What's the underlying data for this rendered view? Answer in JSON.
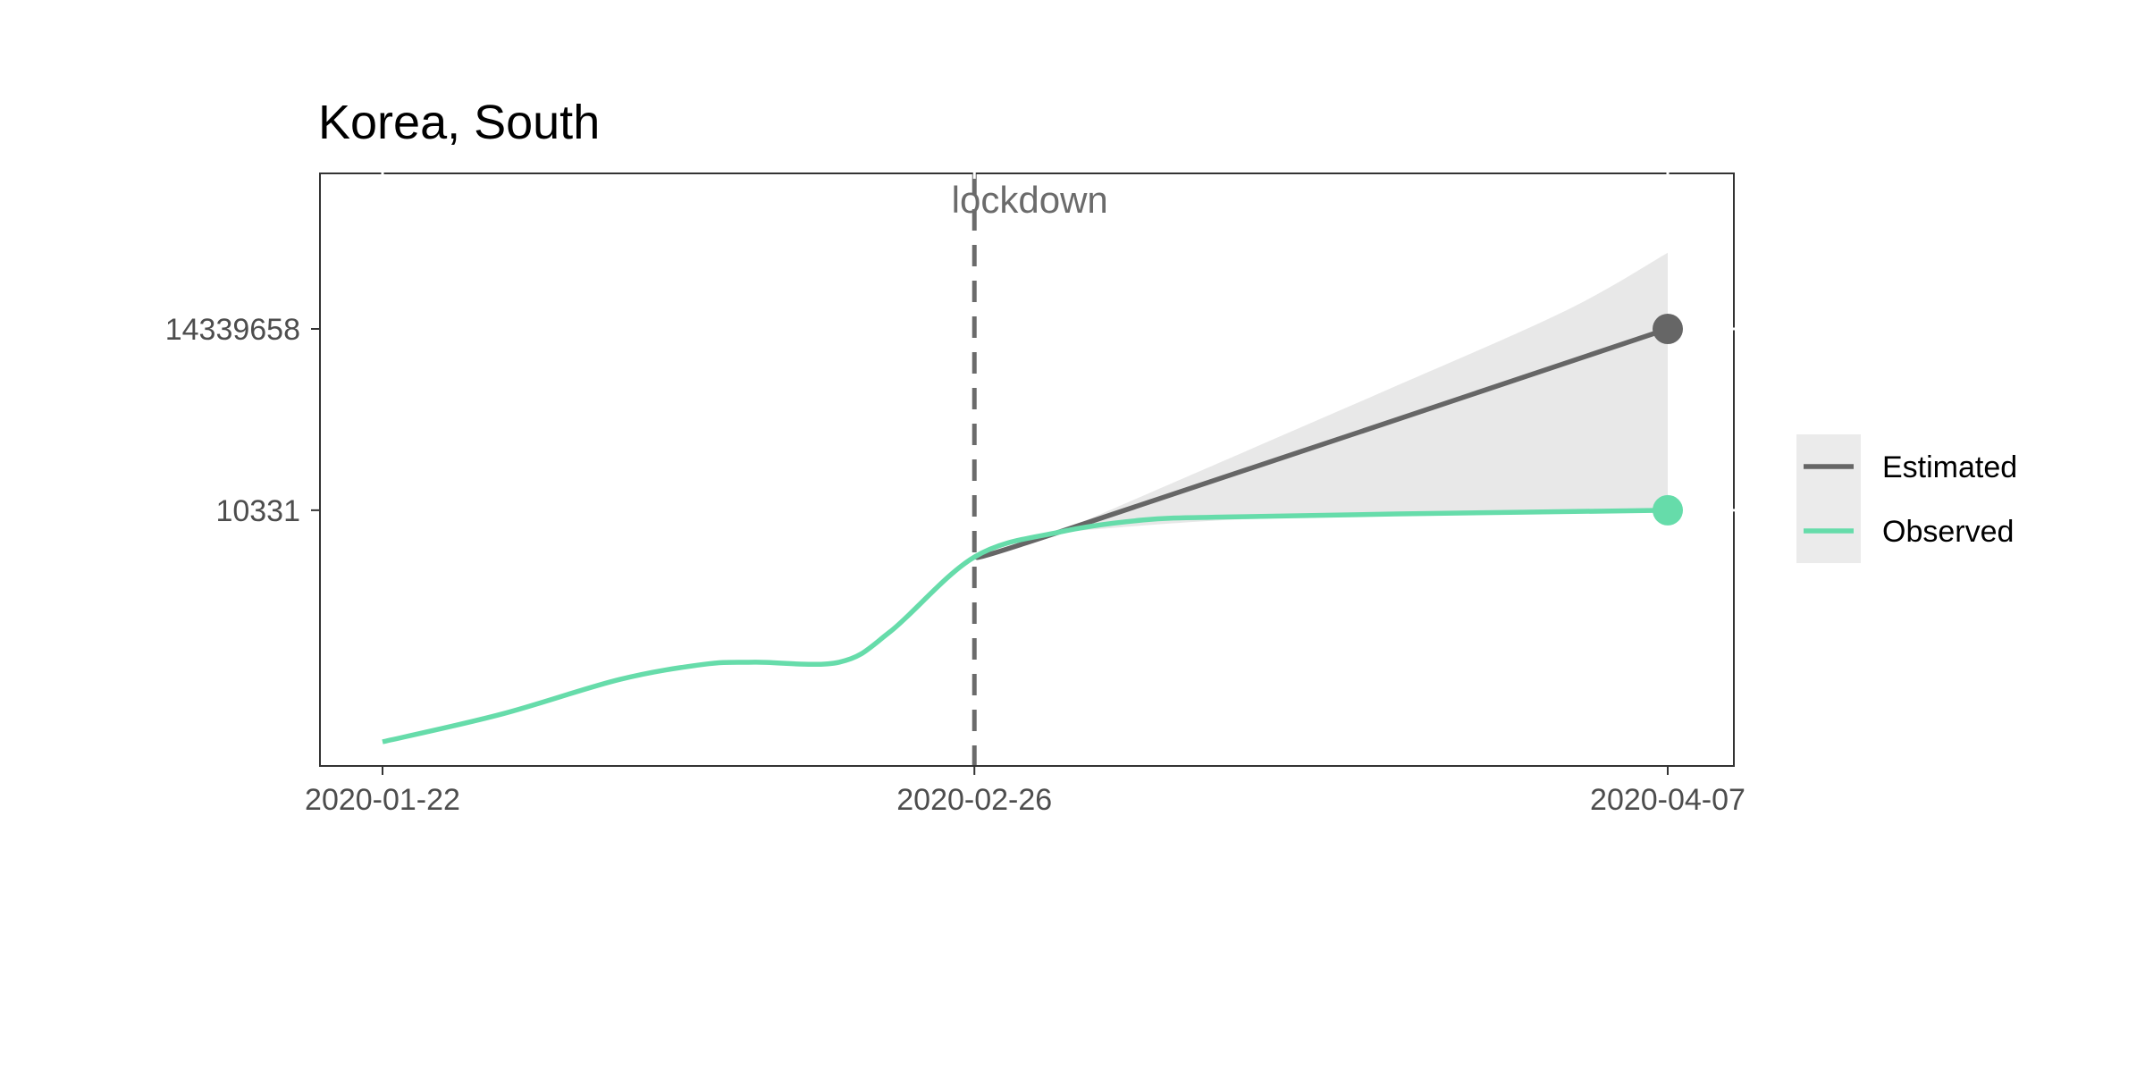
{
  "chart_data": {
    "type": "line",
    "title": "Korea, South",
    "xlabel": "",
    "ylabel": "",
    "x_ticks": [
      "2020-01-22",
      "2020-02-26",
      "2020-04-07"
    ],
    "y_ticks": [
      10331,
      14339658
    ],
    "y_tick_labels": [
      "10331",
      "14339658"
    ],
    "y_scale": "log",
    "grid": false,
    "legend_position": "right",
    "annotations": [
      {
        "text": "lockdown",
        "x": "2020-02-26",
        "style": "dashed vertical line"
      }
    ],
    "series": [
      {
        "name": "Estimated",
        "color": "#666666",
        "band_color": "#e8e8e8",
        "points": [
          {
            "x": "2020-02-26",
            "y": 1600
          },
          {
            "x": "2020-03-02",
            "y": 4300
          },
          {
            "x": "2020-04-07",
            "y": 14339658
          }
        ],
        "ribbon": [
          {
            "x": "2020-03-02",
            "lower": 4300,
            "upper": 4300
          },
          {
            "x": "2020-03-12",
            "lower": 7000,
            "upper": 80000
          },
          {
            "x": "2020-03-22",
            "lower": 8200,
            "upper": 1500000
          },
          {
            "x": "2020-04-01",
            "lower": 9500,
            "upper": 30000000
          },
          {
            "x": "2020-04-07",
            "lower": 10000,
            "upper": 300000000
          }
        ]
      },
      {
        "name": "Observed",
        "color": "#66dcaa",
        "points": [
          {
            "x": "2020-01-22",
            "y": 1
          },
          {
            "x": "2020-01-29",
            "y": 3
          },
          {
            "x": "2020-02-05",
            "y": 12
          },
          {
            "x": "2020-02-10",
            "y": 22
          },
          {
            "x": "2020-02-13",
            "y": 24
          },
          {
            "x": "2020-02-18",
            "y": 24
          },
          {
            "x": "2020-02-21",
            "y": 80
          },
          {
            "x": "2020-02-26",
            "y": 1600
          },
          {
            "x": "2020-03-02",
            "y": 4300
          },
          {
            "x": "2020-03-07",
            "y": 7000
          },
          {
            "x": "2020-03-12",
            "y": 7900
          },
          {
            "x": "2020-03-22",
            "y": 8900
          },
          {
            "x": "2020-04-07",
            "y": 10331
          }
        ]
      }
    ]
  }
}
